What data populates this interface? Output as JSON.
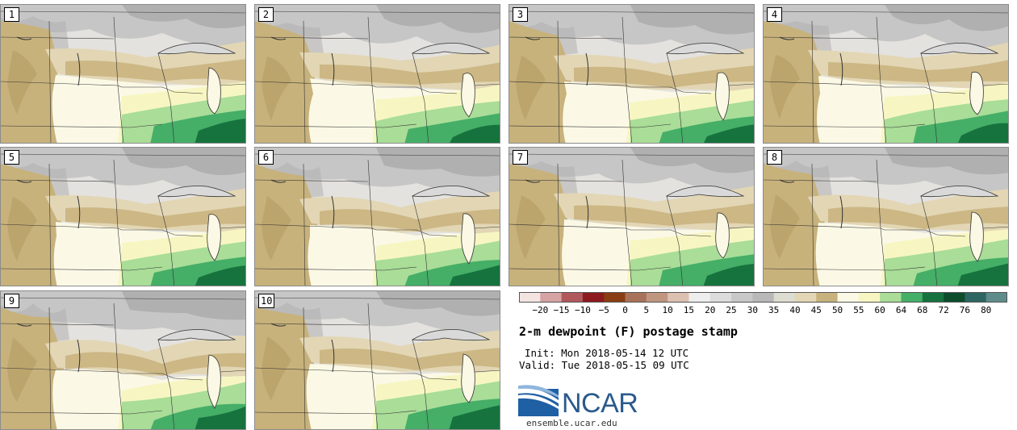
{
  "panels": [
    {
      "label": "1"
    },
    {
      "label": "2"
    },
    {
      "label": "3"
    },
    {
      "label": "4"
    },
    {
      "label": "5"
    },
    {
      "label": "6"
    },
    {
      "label": "7"
    },
    {
      "label": "8"
    },
    {
      "label": "9"
    },
    {
      "label": "10"
    }
  ],
  "legend": {
    "ticks": [
      "−20",
      "−15",
      "−10",
      "−5",
      "0",
      "5",
      "10",
      "15",
      "20",
      "25",
      "30",
      "35",
      "40",
      "45",
      "50",
      "55",
      "60",
      "64",
      "68",
      "72",
      "76",
      "80"
    ],
    "colors": [
      "#f3e4e2",
      "#d5a3a4",
      "#b0585c",
      "#8c1a1f",
      "#8a3d12",
      "#a8725a",
      "#c19680",
      "#dcc0b0",
      "#eeeeee",
      "#dcdcdc",
      "#c8c8c8",
      "#b8b8b8",
      "#dcdcd0",
      "#e2d6b4",
      "#c8b27c",
      "#fbf9e6",
      "#f7f6c2",
      "#a9dd98",
      "#45ae67",
      "#16733e",
      "#0d4d2c",
      "#2d6663",
      "#5f8c8a"
    ]
  },
  "title": "2-m dewpoint (F) postage stamp",
  "init": "Init: Mon 2018-05-14 12 UTC",
  "valid": "Valid: Tue 2018-05-15 09 UTC",
  "logo": {
    "name": "NCAR",
    "url": "ensemble.ucar.edu"
  }
}
